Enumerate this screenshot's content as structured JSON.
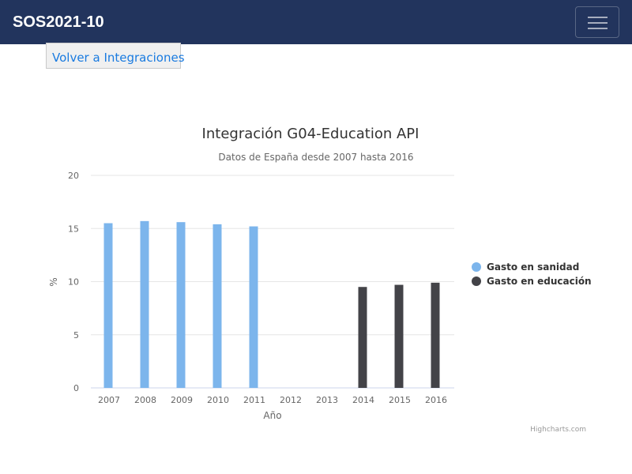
{
  "navbar": {
    "brand": "SOS2021-10",
    "menu_icon": "hamburger-menu-icon"
  },
  "back_button": {
    "label": "Volver a Integraciones"
  },
  "chart_data": {
    "type": "bar",
    "title": "Integración G04-Education API",
    "subtitle": "Datos de España desde 2007 hasta 2016",
    "xlabel": "Año",
    "ylabel": "%",
    "categories": [
      "2007",
      "2008",
      "2009",
      "2010",
      "2011",
      "2012",
      "2013",
      "2014",
      "2015",
      "2016"
    ],
    "ylim": [
      0,
      20
    ],
    "yticks": [
      0,
      5,
      10,
      15,
      20
    ],
    "grid": true,
    "legend_position": "right",
    "series": [
      {
        "name": "Gasto en sanidad",
        "color": "#7cb5ec",
        "values": [
          15.5,
          15.7,
          15.6,
          15.4,
          15.2,
          null,
          null,
          null,
          null,
          null
        ]
      },
      {
        "name": "Gasto en educación",
        "color": "#434348",
        "values": [
          null,
          null,
          null,
          null,
          null,
          null,
          null,
          9.5,
          9.7,
          9.9
        ]
      }
    ],
    "credits": "Highcharts.com"
  }
}
